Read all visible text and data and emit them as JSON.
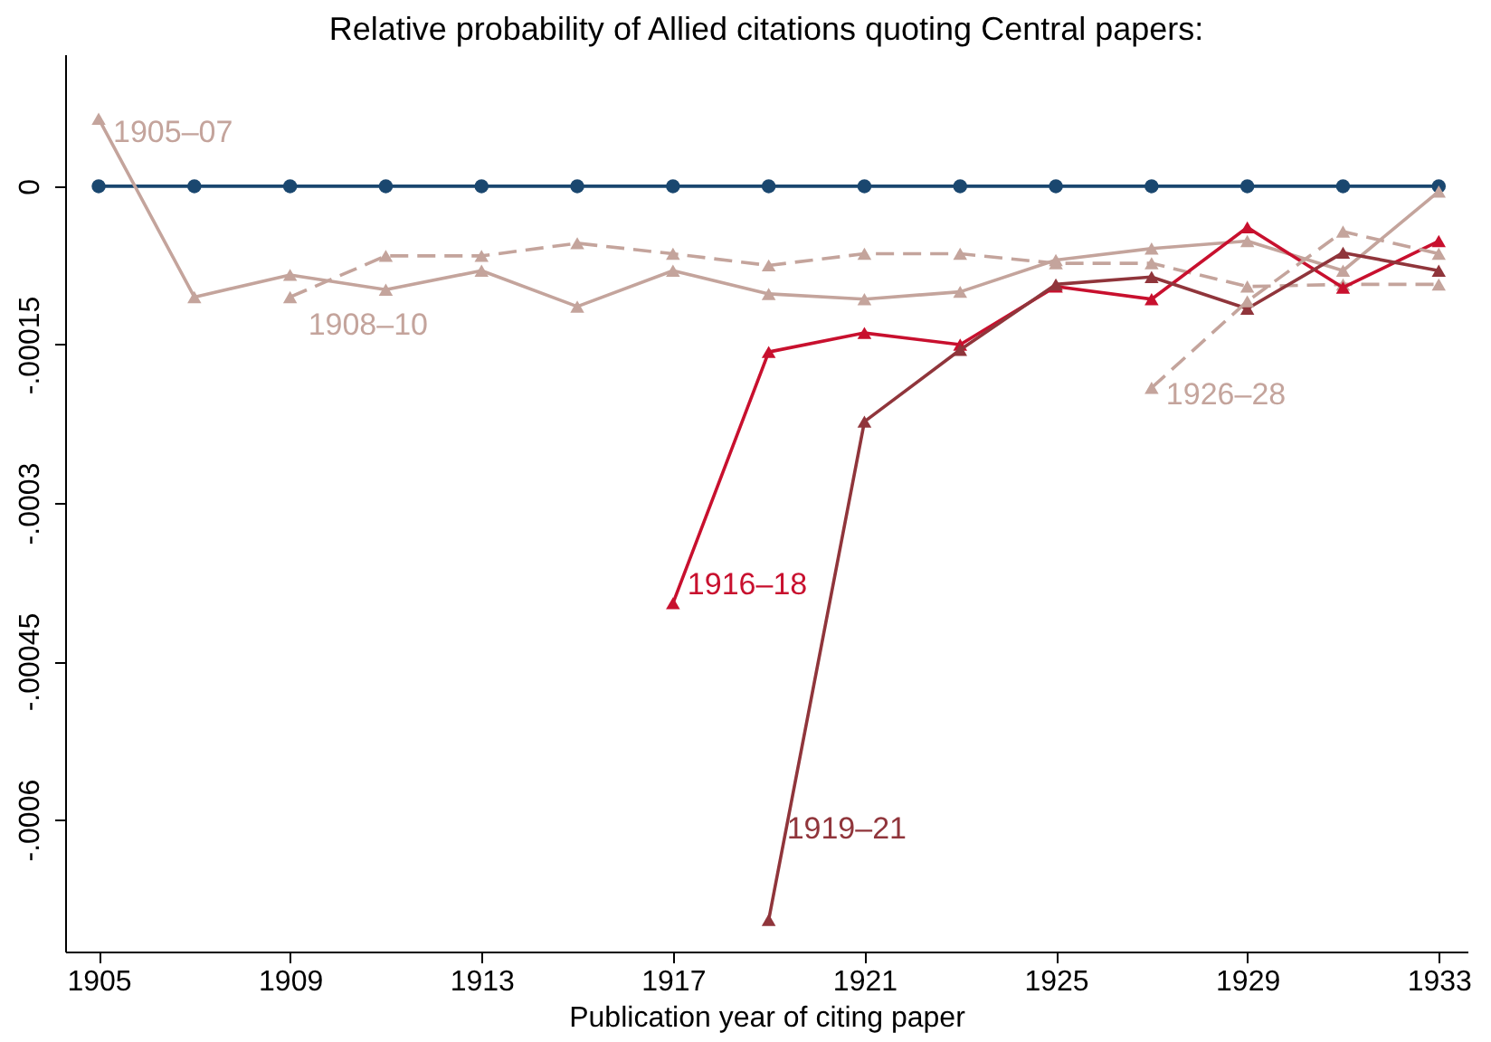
{
  "chart_data": {
    "type": "line",
    "title": "Relative probability of Allied citations quoting Central papers:",
    "xlabel": "Publication year of citing paper",
    "xlim": [
      1904.3,
      1933.6
    ],
    "xticks": [
      1905,
      1909,
      1913,
      1917,
      1921,
      1925,
      1929,
      1933
    ],
    "ylim": [
      -0.000725,
      0.000125
    ],
    "yticks": [
      {
        "value": 0,
        "label": "0"
      },
      {
        "value": -0.00015,
        "label": "-.00015"
      },
      {
        "value": -0.0003,
        "label": "-.0003"
      },
      {
        "value": -0.00045,
        "label": "-.00045"
      },
      {
        "value": -0.0006,
        "label": "-.0006"
      }
    ],
    "grid": false,
    "series": [
      {
        "color": "#1a476f",
        "marker": "circle",
        "line_style": "solid",
        "x": [
          1905,
          1907,
          1909,
          1911,
          1913,
          1915,
          1917,
          1919,
          1921,
          1923,
          1925,
          1927,
          1929,
          1931,
          1933
        ],
        "values": [
          0,
          0,
          0,
          0,
          0,
          0,
          0,
          0,
          0,
          0,
          0,
          0,
          0,
          0,
          0
        ]
      },
      {
        "name": "1905–07",
        "color": "#c4a49c",
        "marker": "triangle",
        "line_style": "solid",
        "x": [
          1905,
          1907,
          1909,
          1911,
          1913,
          1915,
          1917,
          1919,
          1921,
          1923,
          1925,
          1927,
          1929,
          1931,
          1933
        ],
        "values": [
          6.4e-05,
          -0.000105,
          -8.4e-05,
          -9.8e-05,
          -8e-05,
          -0.000114,
          -8e-05,
          -0.000102,
          -0.000107,
          -0.0001,
          -7e-05,
          -5.9e-05,
          -5.2e-05,
          -8e-05,
          -5e-06
        ]
      },
      {
        "name": "1908–10",
        "color": "#c4a49c",
        "marker": "triangle",
        "line_style": "dashed",
        "x": [
          1909,
          1911,
          1913,
          1915,
          1917,
          1919,
          1921,
          1923,
          1925,
          1927,
          1929,
          1931,
          1933
        ],
        "values": [
          -0.000105,
          -6.6e-05,
          -6.6e-05,
          -5.4e-05,
          -6.4e-05,
          -7.5e-05,
          -6.4e-05,
          -6.4e-05,
          -7.3e-05,
          -7.3e-05,
          -9.5e-05,
          -9.3e-05,
          -9.3e-05
        ]
      },
      {
        "name": "1916–18",
        "color": "#c8102e",
        "marker": "triangle",
        "line_style": "solid",
        "x": [
          1917,
          1919,
          1921,
          1923,
          1925,
          1927,
          1929,
          1931,
          1933
        ],
        "values": [
          -0.000395,
          -0.000157,
          -0.000139,
          -0.00015,
          -9.5e-05,
          -0.000107,
          -3.9e-05,
          -9.6e-05,
          -5.2e-05
        ]
      },
      {
        "name": "1919–21",
        "color": "#90353b",
        "marker": "triangle",
        "line_style": "solid",
        "x": [
          1919,
          1921,
          1923,
          1925,
          1927,
          1929,
          1931,
          1933
        ],
        "values": [
          -0.000695,
          -0.000223,
          -0.000155,
          -9.3e-05,
          -8.6e-05,
          -0.000116,
          -6.3e-05,
          -8e-05
        ]
      },
      {
        "name": "1926–28",
        "color": "#c4a49c",
        "marker": "triangle",
        "line_style": "dashed",
        "x": [
          1927,
          1929,
          1931,
          1933
        ],
        "values": [
          -0.000191,
          -0.000109,
          -4.3e-05,
          -6.4e-05
        ]
      }
    ]
  }
}
